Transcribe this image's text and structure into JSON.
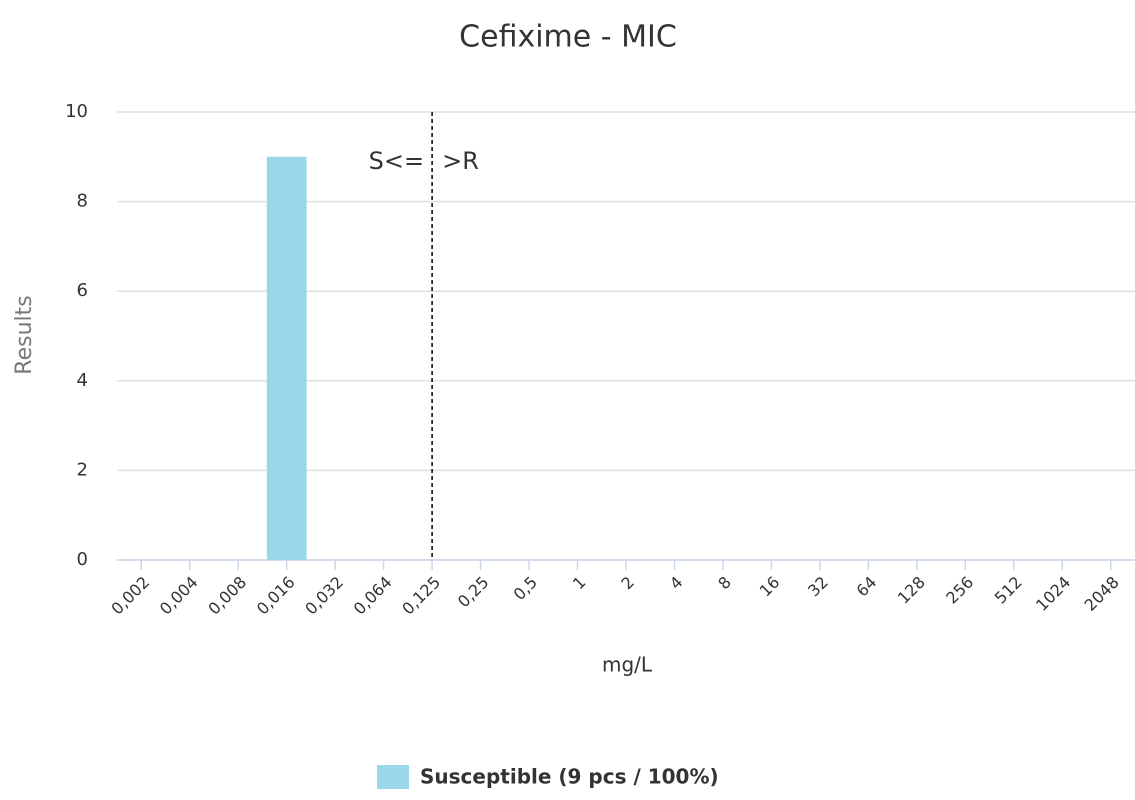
{
  "chart_data": {
    "type": "bar",
    "title": "Cefixime - MIC",
    "categories": [
      "0,002",
      "0,004",
      "0,008",
      "0,016",
      "0,032",
      "0,064",
      "0,125",
      "0,25",
      "0,5",
      "1",
      "2",
      "4",
      "8",
      "16",
      "32",
      "64",
      "128",
      "256",
      "512",
      "1024",
      "2048"
    ],
    "series": [
      {
        "name": "Susceptible (9 pcs / 100%)",
        "color": "#99d8e8",
        "values": [
          0,
          0,
          0,
          9,
          0,
          0,
          0,
          0,
          0,
          0,
          0,
          0,
          0,
          0,
          0,
          0,
          0,
          0,
          0,
          0,
          0
        ]
      }
    ],
    "ylim": [
      0,
      10
    ],
    "yticks": [
      0,
      2,
      4,
      6,
      8,
      10
    ],
    "grid": true,
    "ylabel": "Results",
    "xlabel": "mg/L",
    "breakpoint": "0,125",
    "annotation_left": "S<=",
    "annotation_right": ">R"
  }
}
